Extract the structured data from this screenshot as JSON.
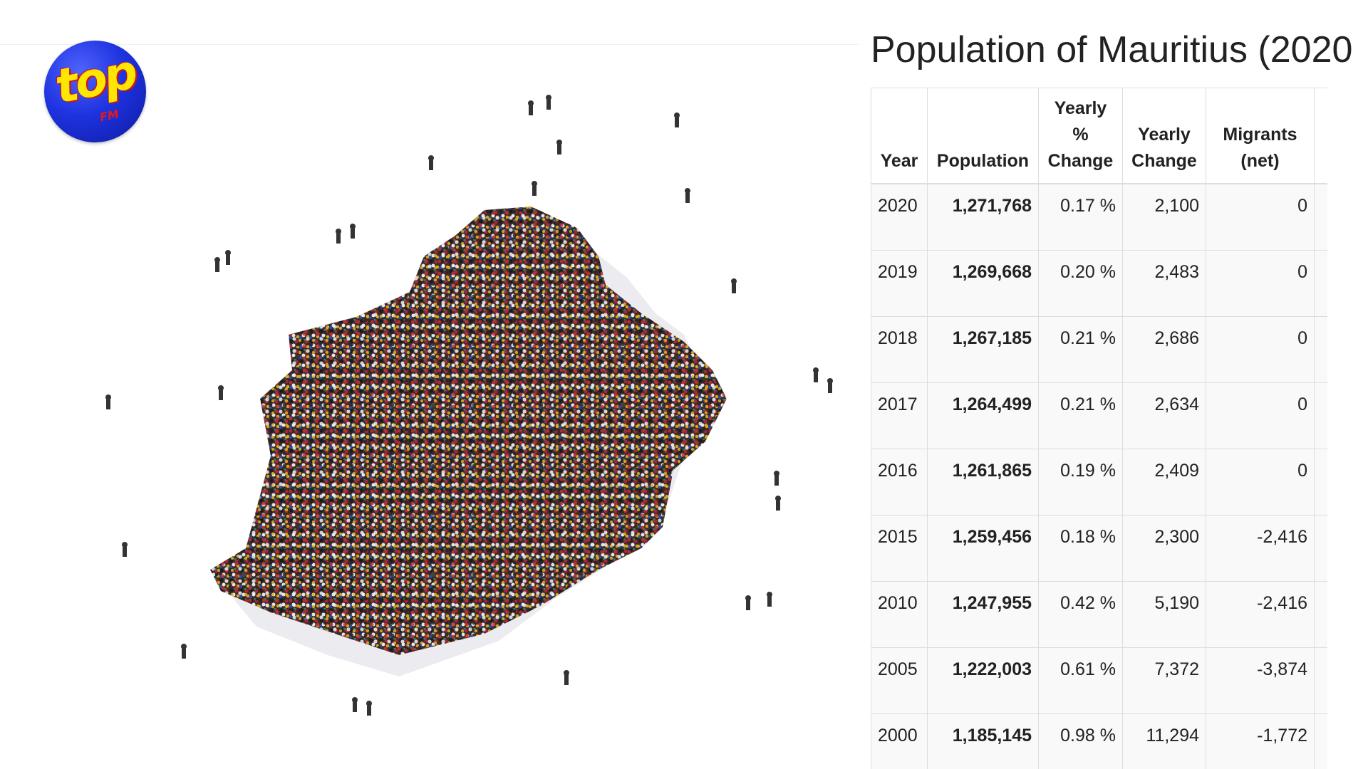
{
  "logo": {
    "text": "top",
    "sub": "FM"
  },
  "image": {
    "subject": "crowd-forming-mauritius-map"
  },
  "table": {
    "title": "Population of Mauritius (2020",
    "headers": {
      "year": "Year",
      "population": "Population",
      "pct_line1": "Yearly",
      "pct_line2": "%",
      "pct_line3": "Change",
      "yc_line1": "Yearly",
      "yc_line2": "Change",
      "mig_line1": "Migrants",
      "mig_line2": "(net)"
    },
    "rows": [
      {
        "year": "2020",
        "population": "1,271,768",
        "pct": "0.17 %",
        "change": "2,100",
        "migrants": "0"
      },
      {
        "year": "2019",
        "population": "1,269,668",
        "pct": "0.20 %",
        "change": "2,483",
        "migrants": "0"
      },
      {
        "year": "2018",
        "population": "1,267,185",
        "pct": "0.21 %",
        "change": "2,686",
        "migrants": "0"
      },
      {
        "year": "2017",
        "population": "1,264,499",
        "pct": "0.21 %",
        "change": "2,634",
        "migrants": "0"
      },
      {
        "year": "2016",
        "population": "1,261,865",
        "pct": "0.19 %",
        "change": "2,409",
        "migrants": "0"
      },
      {
        "year": "2015",
        "population": "1,259,456",
        "pct": "0.18 %",
        "change": "2,300",
        "migrants": "-2,416"
      },
      {
        "year": "2010",
        "population": "1,247,955",
        "pct": "0.42 %",
        "change": "5,190",
        "migrants": "-2,416"
      },
      {
        "year": "2005",
        "population": "1,222,003",
        "pct": "0.61 %",
        "change": "7,372",
        "migrants": "-3,874"
      },
      {
        "year": "2000",
        "population": "1,185,145",
        "pct": "0.98 %",
        "change": "11,294",
        "migrants": "-1,772"
      }
    ]
  }
}
